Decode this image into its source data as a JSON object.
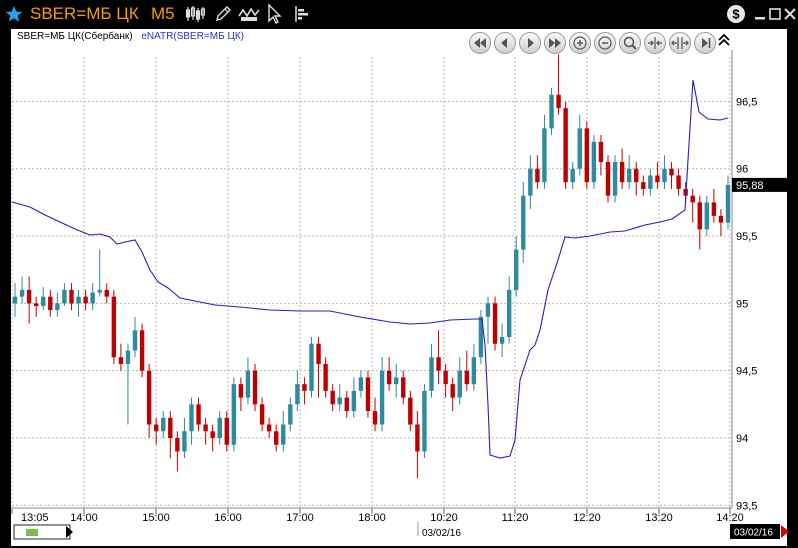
{
  "window": {
    "ticker": "SBER=МБ ЦК",
    "timeframe": "M5"
  },
  "legend": {
    "symbol": "SBER=МБ ЦК(Сбербанк)",
    "indicator": "eNATR(SBER=МБ ЦК)"
  },
  "colors": {
    "up": "#2f8a9e",
    "down": "#c00000",
    "indicator": "#2020c0",
    "title": "#f0a000"
  },
  "chart_data": {
    "type": "candlestick",
    "ylim": [
      93.48,
      96.83
    ],
    "yticks": [
      {
        "v": 93.5,
        "label": "93,5"
      },
      {
        "v": 94,
        "label": "94"
      },
      {
        "v": 94.5,
        "label": "94,5"
      },
      {
        "v": 95,
        "label": "95"
      },
      {
        "v": 95.5,
        "label": "95,5"
      },
      {
        "v": 96,
        "label": "96"
      },
      {
        "v": 96.5,
        "label": "96,5"
      }
    ],
    "last_price": {
      "v": 95.88,
      "label": "95,88"
    },
    "xticks": [
      "13:05",
      "14:00",
      "15:00",
      "16:00",
      "17:00",
      "18:00",
      "10:20",
      "11:20",
      "12:20",
      "13:20",
      "14:20"
    ],
    "date_labels": [
      "03/02/16",
      "03/02/16"
    ],
    "candles": [
      [
        95.0,
        95.05,
        95.15,
        94.9
      ],
      [
        95.05,
        95.1,
        95.2,
        95.0
      ],
      [
        95.1,
        95.0,
        95.2,
        94.85
      ],
      [
        95.0,
        94.98,
        95.05,
        94.9
      ],
      [
        94.98,
        95.05,
        95.12,
        94.95
      ],
      [
        95.05,
        94.95,
        95.1,
        94.9
      ],
      [
        94.95,
        95.0,
        95.08,
        94.9
      ],
      [
        95.0,
        95.1,
        95.15,
        94.98
      ],
      [
        95.1,
        95.0,
        95.15,
        94.95
      ],
      [
        95.0,
        95.05,
        95.1,
        94.9
      ],
      [
        95.05,
        95.0,
        95.1,
        94.95
      ],
      [
        95.0,
        95.08,
        95.15,
        94.95
      ],
      [
        95.08,
        95.1,
        95.4,
        95.05
      ],
      [
        95.1,
        95.05,
        95.15,
        95.0
      ],
      [
        95.05,
        94.6,
        95.1,
        94.55
      ],
      [
        94.6,
        94.55,
        94.7,
        94.5
      ],
      [
        94.55,
        94.65,
        94.7,
        94.1
      ],
      [
        94.65,
        94.8,
        94.9,
        94.6
      ],
      [
        94.8,
        94.5,
        94.85,
        94.45
      ],
      [
        94.5,
        94.1,
        94.55,
        94.0
      ],
      [
        94.1,
        94.05,
        94.15,
        93.95
      ],
      [
        94.05,
        94.15,
        94.2,
        94.0
      ],
      [
        94.15,
        94.0,
        94.2,
        93.85
      ],
      [
        94.0,
        93.9,
        94.05,
        93.75
      ],
      [
        93.9,
        94.05,
        94.15,
        93.85
      ],
      [
        94.05,
        94.25,
        94.3,
        93.95
      ],
      [
        94.25,
        94.1,
        94.3,
        94.05
      ],
      [
        94.1,
        94.05,
        94.15,
        93.95
      ],
      [
        94.05,
        94.0,
        94.1,
        93.9
      ],
      [
        94.0,
        94.15,
        94.2,
        93.95
      ],
      [
        94.15,
        93.95,
        94.2,
        93.9
      ],
      [
        93.95,
        94.4,
        94.45,
        93.9
      ],
      [
        94.4,
        94.3,
        94.45,
        94.2
      ],
      [
        94.3,
        94.5,
        94.6,
        94.25
      ],
      [
        94.5,
        94.25,
        94.55,
        94.2
      ],
      [
        94.25,
        94.1,
        94.3,
        94.05
      ],
      [
        94.1,
        94.05,
        94.15,
        94.0
      ],
      [
        94.05,
        93.95,
        94.1,
        93.9
      ],
      [
        93.95,
        94.1,
        94.2,
        93.9
      ],
      [
        94.1,
        94.25,
        94.3,
        94.05
      ],
      [
        94.25,
        94.4,
        94.5,
        94.2
      ],
      [
        94.4,
        94.35,
        94.45,
        94.25
      ],
      [
        94.35,
        94.7,
        94.75,
        94.3
      ],
      [
        94.7,
        94.55,
        94.75,
        94.3
      ],
      [
        94.55,
        94.35,
        94.6,
        94.3
      ],
      [
        94.35,
        94.25,
        94.4,
        94.2
      ],
      [
        94.25,
        94.3,
        94.4,
        94.2
      ],
      [
        94.3,
        94.2,
        94.35,
        94.15
      ],
      [
        94.2,
        94.35,
        94.45,
        94.15
      ],
      [
        94.35,
        94.45,
        94.5,
        94.3
      ],
      [
        94.45,
        94.2,
        94.5,
        94.15
      ],
      [
        94.2,
        94.1,
        94.3,
        94.05
      ],
      [
        94.1,
        94.5,
        94.6,
        94.05
      ],
      [
        94.5,
        94.4,
        94.6,
        94.35
      ],
      [
        94.4,
        94.45,
        94.55,
        94.3
      ],
      [
        94.45,
        94.3,
        94.5,
        94.25
      ],
      [
        94.3,
        94.1,
        94.35,
        94.05
      ],
      [
        94.1,
        93.9,
        94.2,
        93.7
      ],
      [
        93.9,
        94.35,
        94.4,
        93.85
      ],
      [
        94.35,
        94.6,
        94.7,
        94.3
      ],
      [
        94.6,
        94.5,
        94.8,
        94.4
      ],
      [
        94.5,
        94.4,
        94.55,
        94.3
      ],
      [
        94.4,
        94.3,
        94.45,
        94.2
      ],
      [
        94.3,
        94.5,
        94.6,
        94.25
      ],
      [
        94.5,
        94.4,
        94.65,
        94.35
      ],
      [
        94.4,
        94.6,
        94.7,
        94.35
      ],
      [
        94.6,
        94.9,
        94.95,
        94.55
      ],
      [
        94.9,
        95.0,
        95.05,
        94.7
      ],
      [
        95.0,
        94.7,
        95.05,
        94.65
      ],
      [
        94.7,
        94.75,
        94.85,
        94.6
      ],
      [
        94.75,
        95.1,
        95.2,
        94.7
      ],
      [
        95.1,
        95.4,
        95.5,
        95.05
      ],
      [
        95.4,
        95.8,
        95.9,
        95.3
      ],
      [
        95.8,
        96.0,
        96.1,
        95.7
      ],
      [
        96.0,
        95.9,
        96.1,
        95.85
      ],
      [
        95.9,
        96.3,
        96.4,
        95.85
      ],
      [
        96.3,
        96.55,
        96.6,
        96.25
      ],
      [
        96.55,
        96.45,
        96.85,
        96.4
      ],
      [
        96.45,
        95.9,
        96.5,
        95.85
      ],
      [
        95.9,
        96.0,
        96.05,
        95.85
      ],
      [
        96.0,
        96.3,
        96.4,
        95.95
      ],
      [
        96.3,
        95.9,
        96.35,
        95.85
      ],
      [
        95.9,
        96.2,
        96.25,
        95.85
      ],
      [
        96.2,
        96.05,
        96.25,
        95.95
      ],
      [
        96.05,
        95.8,
        96.1,
        95.75
      ],
      [
        95.8,
        96.05,
        96.1,
        95.75
      ],
      [
        96.05,
        95.9,
        96.15,
        95.85
      ],
      [
        95.9,
        96.0,
        96.1,
        95.85
      ],
      [
        96.0,
        95.9,
        96.05,
        95.8
      ],
      [
        95.9,
        95.85,
        95.95,
        95.8
      ],
      [
        95.85,
        95.95,
        96.0,
        95.8
      ],
      [
        95.95,
        95.9,
        96.05,
        95.85
      ],
      [
        95.9,
        96.0,
        96.1,
        95.85
      ],
      [
        96.0,
        95.95,
        96.05,
        95.85
      ],
      [
        95.95,
        95.85,
        96.0,
        95.8
      ],
      [
        95.85,
        95.8,
        95.9,
        95.75
      ],
      [
        95.8,
        95.75,
        95.85,
        95.6
      ],
      [
        95.75,
        95.55,
        95.8,
        95.4
      ],
      [
        95.55,
        95.75,
        95.8,
        95.5
      ],
      [
        95.75,
        95.65,
        95.85,
        95.6
      ],
      [
        95.65,
        95.6,
        95.7,
        95.5
      ],
      [
        95.6,
        95.88,
        95.95,
        95.55
      ]
    ],
    "indicator": [
      [
        12,
        202
      ],
      [
        30,
        207
      ],
      [
        45,
        215
      ],
      [
        60,
        222
      ],
      [
        75,
        229
      ],
      [
        90,
        235
      ],
      [
        100,
        234
      ],
      [
        110,
        237
      ],
      [
        117,
        244
      ],
      [
        125,
        242
      ],
      [
        135,
        240
      ],
      [
        142,
        252
      ],
      [
        150,
        270
      ],
      [
        158,
        282
      ],
      [
        168,
        288
      ],
      [
        180,
        298
      ],
      [
        200,
        302
      ],
      [
        215,
        305
      ],
      [
        240,
        307
      ],
      [
        270,
        310
      ],
      [
        300,
        311
      ],
      [
        330,
        311
      ],
      [
        360,
        317
      ],
      [
        390,
        322
      ],
      [
        410,
        324
      ],
      [
        430,
        323
      ],
      [
        450,
        320
      ],
      [
        475,
        319
      ],
      [
        482,
        319
      ],
      [
        485,
        345
      ],
      [
        488,
        405
      ],
      [
        490,
        455
      ],
      [
        500,
        458
      ],
      [
        510,
        456
      ],
      [
        515,
        440
      ],
      [
        520,
        380
      ],
      [
        530,
        350
      ],
      [
        535,
        345
      ],
      [
        540,
        330
      ],
      [
        548,
        290
      ],
      [
        558,
        260
      ],
      [
        565,
        237
      ],
      [
        575,
        238
      ],
      [
        590,
        236
      ],
      [
        610,
        232
      ],
      [
        625,
        231
      ],
      [
        645,
        225
      ],
      [
        660,
        222
      ],
      [
        672,
        219
      ],
      [
        685,
        210
      ],
      [
        688,
        160
      ],
      [
        693,
        80
      ],
      [
        699,
        112
      ],
      [
        708,
        119
      ],
      [
        720,
        120
      ],
      [
        728,
        118
      ]
    ]
  }
}
